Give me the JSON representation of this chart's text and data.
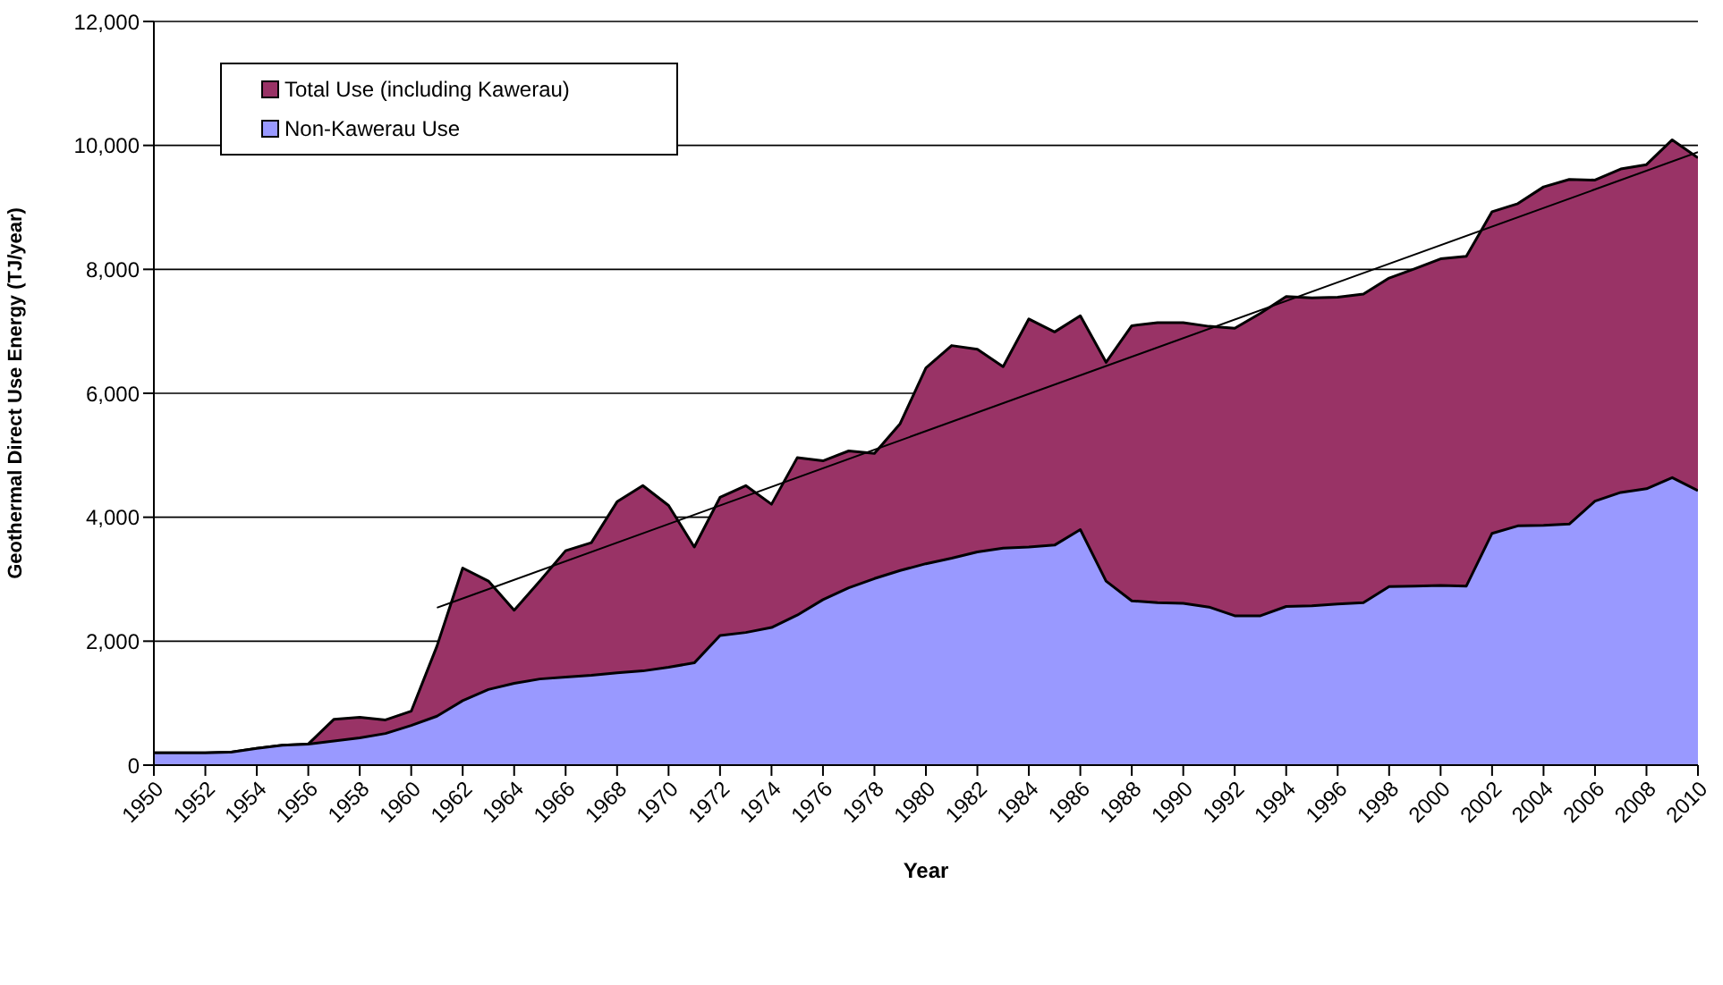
{
  "chart_data": {
    "type": "area",
    "xlabel": "Year",
    "ylabel": "Geothermal Direct Use Energy (TJ/year)",
    "x": [
      1950,
      1951,
      1952,
      1953,
      1954,
      1955,
      1956,
      1957,
      1958,
      1959,
      1960,
      1961,
      1962,
      1963,
      1964,
      1965,
      1966,
      1967,
      1968,
      1969,
      1970,
      1971,
      1972,
      1973,
      1974,
      1975,
      1976,
      1977,
      1978,
      1979,
      1980,
      1981,
      1982,
      1983,
      1984,
      1985,
      1986,
      1987,
      1988,
      1989,
      1990,
      1991,
      1992,
      1993,
      1994,
      1995,
      1996,
      1997,
      1998,
      1999,
      2000,
      2001,
      2002,
      2003,
      2004,
      2005,
      2006,
      2007,
      2008,
      2009,
      2010
    ],
    "series": [
      {
        "name": "Total Use (including Kawerau)",
        "color": "#993366",
        "values": [
          200,
          200,
          200,
          210,
          270,
          320,
          340,
          740,
          770,
          730,
          870,
          1920,
          3180,
          2970,
          2500,
          2970,
          3460,
          3590,
          4250,
          4510,
          4190,
          3520,
          4320,
          4510,
          4210,
          4960,
          4910,
          5070,
          5030,
          5510,
          6410,
          6770,
          6710,
          6430,
          7200,
          6990,
          7250,
          6500,
          7090,
          7140,
          7140,
          7080,
          7050,
          7290,
          7560,
          7540,
          7550,
          7600,
          7860,
          8010,
          8170,
          8210,
          8930,
          9060,
          9330,
          9450,
          9440,
          9620,
          9690,
          10090,
          9800
        ]
      },
      {
        "name": "Non-Kawerau Use",
        "color": "#9999ff",
        "values": [
          200,
          200,
          200,
          210,
          270,
          320,
          340,
          390,
          440,
          510,
          640,
          790,
          1040,
          1220,
          1320,
          1390,
          1420,
          1450,
          1490,
          1520,
          1580,
          1650,
          2090,
          2140,
          2220,
          2420,
          2670,
          2860,
          3010,
          3140,
          3250,
          3340,
          3440,
          3500,
          3520,
          3550,
          3800,
          2970,
          2650,
          2620,
          2610,
          2550,
          2410,
          2410,
          2560,
          2570,
          2600,
          2620,
          2880,
          2890,
          2900,
          2890,
          3740,
          3860,
          3870,
          3890,
          4260,
          4400,
          4460,
          4640,
          4430
        ]
      },
      {
        "type": "line",
        "color": "#000000",
        "x": [
          1961,
          2010
        ],
        "values": [
          2540,
          9890
        ]
      }
    ],
    "xlim": [
      1950,
      2010
    ],
    "xticks": [
      1950,
      1952,
      1954,
      1956,
      1958,
      1960,
      1962,
      1964,
      1966,
      1968,
      1970,
      1972,
      1974,
      1976,
      1978,
      1980,
      1982,
      1984,
      1986,
      1988,
      1990,
      1992,
      1994,
      1996,
      1998,
      2000,
      2002,
      2004,
      2006,
      2008,
      2010
    ],
    "ylim": [
      0,
      12000
    ],
    "yticks": [
      0,
      {
        "value": 2000,
        "label": "2,000"
      },
      {
        "value": 4000,
        "label": "4,000"
      },
      {
        "value": 6000,
        "label": "6,000"
      },
      {
        "value": 8000,
        "label": "8,000"
      },
      {
        "value": 10000,
        "label": "10,000"
      },
      {
        "value": 12000,
        "label": "12,000"
      }
    ],
    "grid": "y",
    "legend": "top left",
    "marker": "none",
    "line_style": "solid"
  }
}
